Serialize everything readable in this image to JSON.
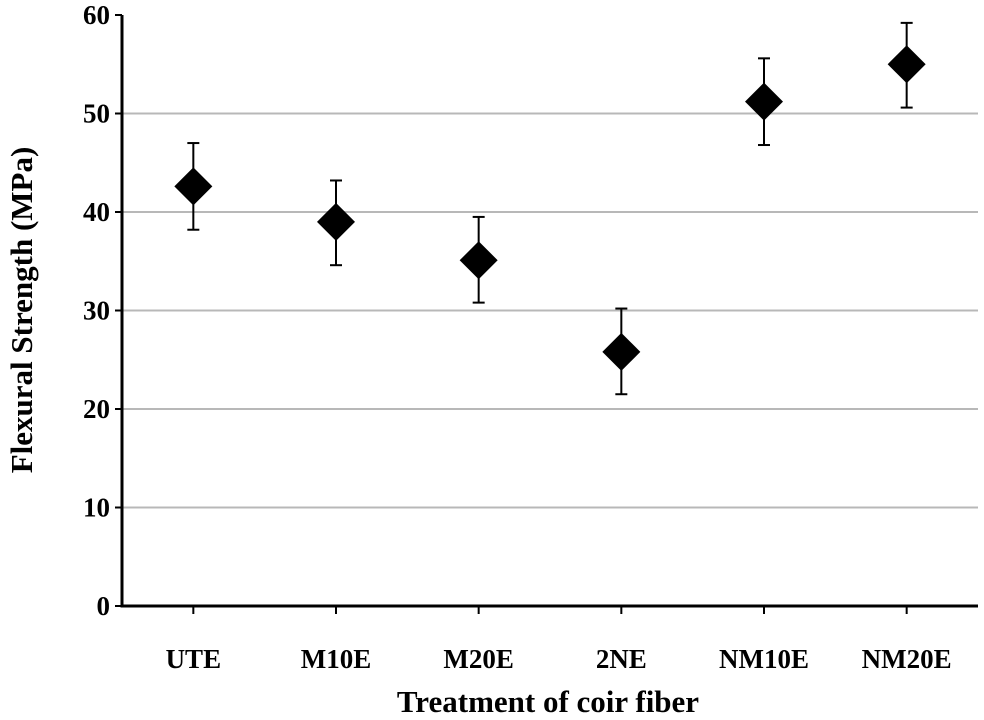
{
  "chart_data": {
    "type": "scatter",
    "title": "",
    "xlabel": "Treatment  of coir fiber",
    "ylabel": "Flexural Strength (MPa)",
    "categories": [
      "UTE",
      "M10E",
      "M20E",
      "2NE",
      "NM10E",
      "NM20E"
    ],
    "values": [
      42.6,
      39.0,
      35.1,
      25.8,
      51.2,
      55.0
    ],
    "error_high": [
      47.0,
      43.2,
      39.5,
      30.2,
      55.6,
      59.2
    ],
    "error_low": [
      38.2,
      34.6,
      30.8,
      21.5,
      46.8,
      50.6
    ],
    "ylim": [
      0,
      60
    ],
    "yticks": [
      0,
      10,
      20,
      30,
      40,
      50,
      60
    ],
    "grid": true,
    "marker": "diamond",
    "marker_color": "#000000",
    "grid_color": "#b8b8b8"
  }
}
